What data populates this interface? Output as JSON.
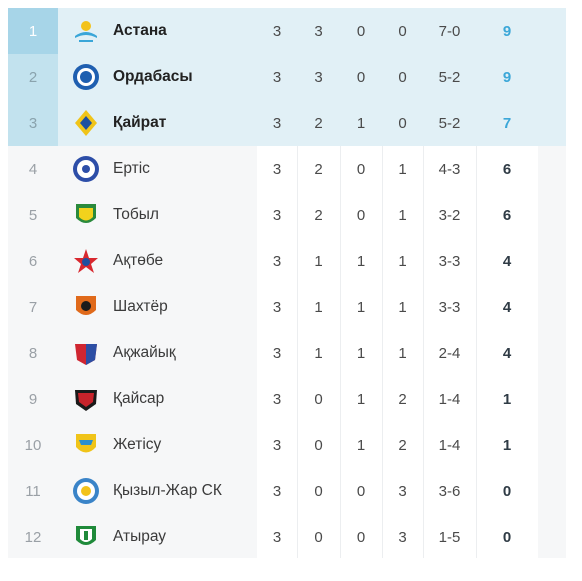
{
  "standings": [
    {
      "rank": "1",
      "team": "Астана",
      "logo": "astana-logo",
      "games": "3",
      "wins": "3",
      "draws": "0",
      "losses": "0",
      "score": "7-0",
      "points": "9"
    },
    {
      "rank": "2",
      "team": "Ордабасы",
      "logo": "ordabasy-logo",
      "games": "3",
      "wins": "3",
      "draws": "0",
      "losses": "0",
      "score": "5-2",
      "points": "9"
    },
    {
      "rank": "3",
      "team": "Қайрат",
      "logo": "kairat-logo",
      "games": "3",
      "wins": "2",
      "draws": "1",
      "losses": "0",
      "score": "5-2",
      "points": "7"
    },
    {
      "rank": "4",
      "team": "Ертіс",
      "logo": "ertis-logo",
      "games": "3",
      "wins": "2",
      "draws": "0",
      "losses": "1",
      "score": "4-3",
      "points": "6"
    },
    {
      "rank": "5",
      "team": "Тобыл",
      "logo": "tobyl-logo",
      "games": "3",
      "wins": "2",
      "draws": "0",
      "losses": "1",
      "score": "3-2",
      "points": "6"
    },
    {
      "rank": "6",
      "team": "Ақтөбе",
      "logo": "aktobe-logo",
      "games": "3",
      "wins": "1",
      "draws": "1",
      "losses": "1",
      "score": "3-3",
      "points": "4"
    },
    {
      "rank": "7",
      "team": "Шахтёр",
      "logo": "shakhter-logo",
      "games": "3",
      "wins": "1",
      "draws": "1",
      "losses": "1",
      "score": "3-3",
      "points": "4"
    },
    {
      "rank": "8",
      "team": "Ақжайық",
      "logo": "akzhaiyk-logo",
      "games": "3",
      "wins": "1",
      "draws": "1",
      "losses": "1",
      "score": "2-4",
      "points": "4"
    },
    {
      "rank": "9",
      "team": "Қайсар",
      "logo": "kaisar-logo",
      "games": "3",
      "wins": "0",
      "draws": "1",
      "losses": "2",
      "score": "1-4",
      "points": "1"
    },
    {
      "rank": "10",
      "team": "Жетісу",
      "logo": "zhetysu-logo",
      "games": "3",
      "wins": "0",
      "draws": "1",
      "losses": "2",
      "score": "1-4",
      "points": "1"
    },
    {
      "rank": "11",
      "team": "Қызыл-Жар СК",
      "logo": "kyzylzhar-logo",
      "games": "3",
      "wins": "0",
      "draws": "0",
      "losses": "3",
      "score": "3-6",
      "points": "0"
    },
    {
      "rank": "12",
      "team": "Атырау",
      "logo": "atyrau-logo",
      "games": "3",
      "wins": "0",
      "draws": "0",
      "losses": "3",
      "score": "1-5",
      "points": "0"
    }
  ],
  "colors": {
    "highlight_row": "#e1f0f6",
    "rank_first": "#a7d5e8",
    "rank_top": "#c2e2ee",
    "points_top": "#3ba7d8",
    "points_default": "#2f3b45"
  }
}
